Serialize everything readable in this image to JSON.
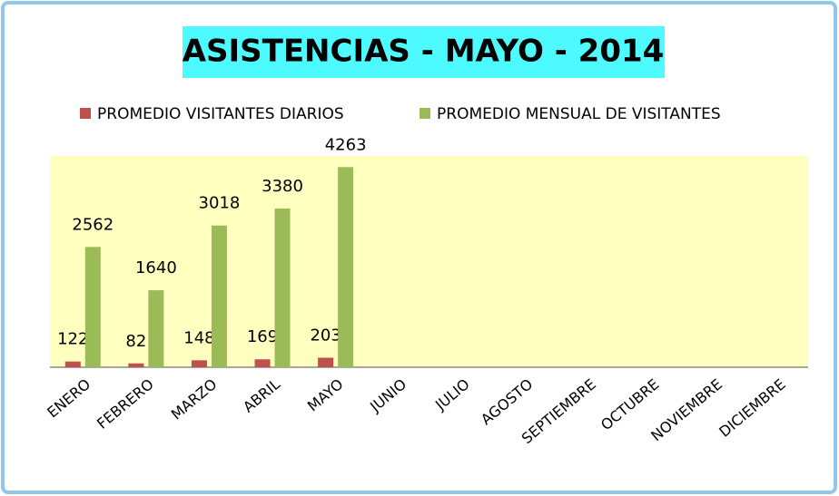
{
  "chart_data": {
    "type": "bar",
    "title": "ASISTENCIAS - MAYO - 2014",
    "categories": [
      "ENERO",
      "FEBRERO",
      "MARZO",
      "ABRIL",
      "MAYO",
      "JUNIO",
      "JULIO",
      "AGOSTO",
      "SEPTIEMBRE",
      "OCTUBRE",
      "NOVIEMBRE",
      "DICIEMBRE"
    ],
    "series": [
      {
        "name": "PROMEDIO VISITANTES DIARIOS",
        "color": "#c0504d",
        "values": [
          122,
          82,
          148,
          169,
          203,
          null,
          null,
          null,
          null,
          null,
          null,
          null
        ]
      },
      {
        "name": "PROMEDIO MENSUAL DE VISITANTES",
        "color": "#9bbb59",
        "values": [
          2562,
          1640,
          3018,
          3380,
          4263,
          null,
          null,
          null,
          null,
          null,
          null,
          null
        ]
      }
    ],
    "ylim": [
      0,
      4500
    ],
    "legend": "top"
  }
}
